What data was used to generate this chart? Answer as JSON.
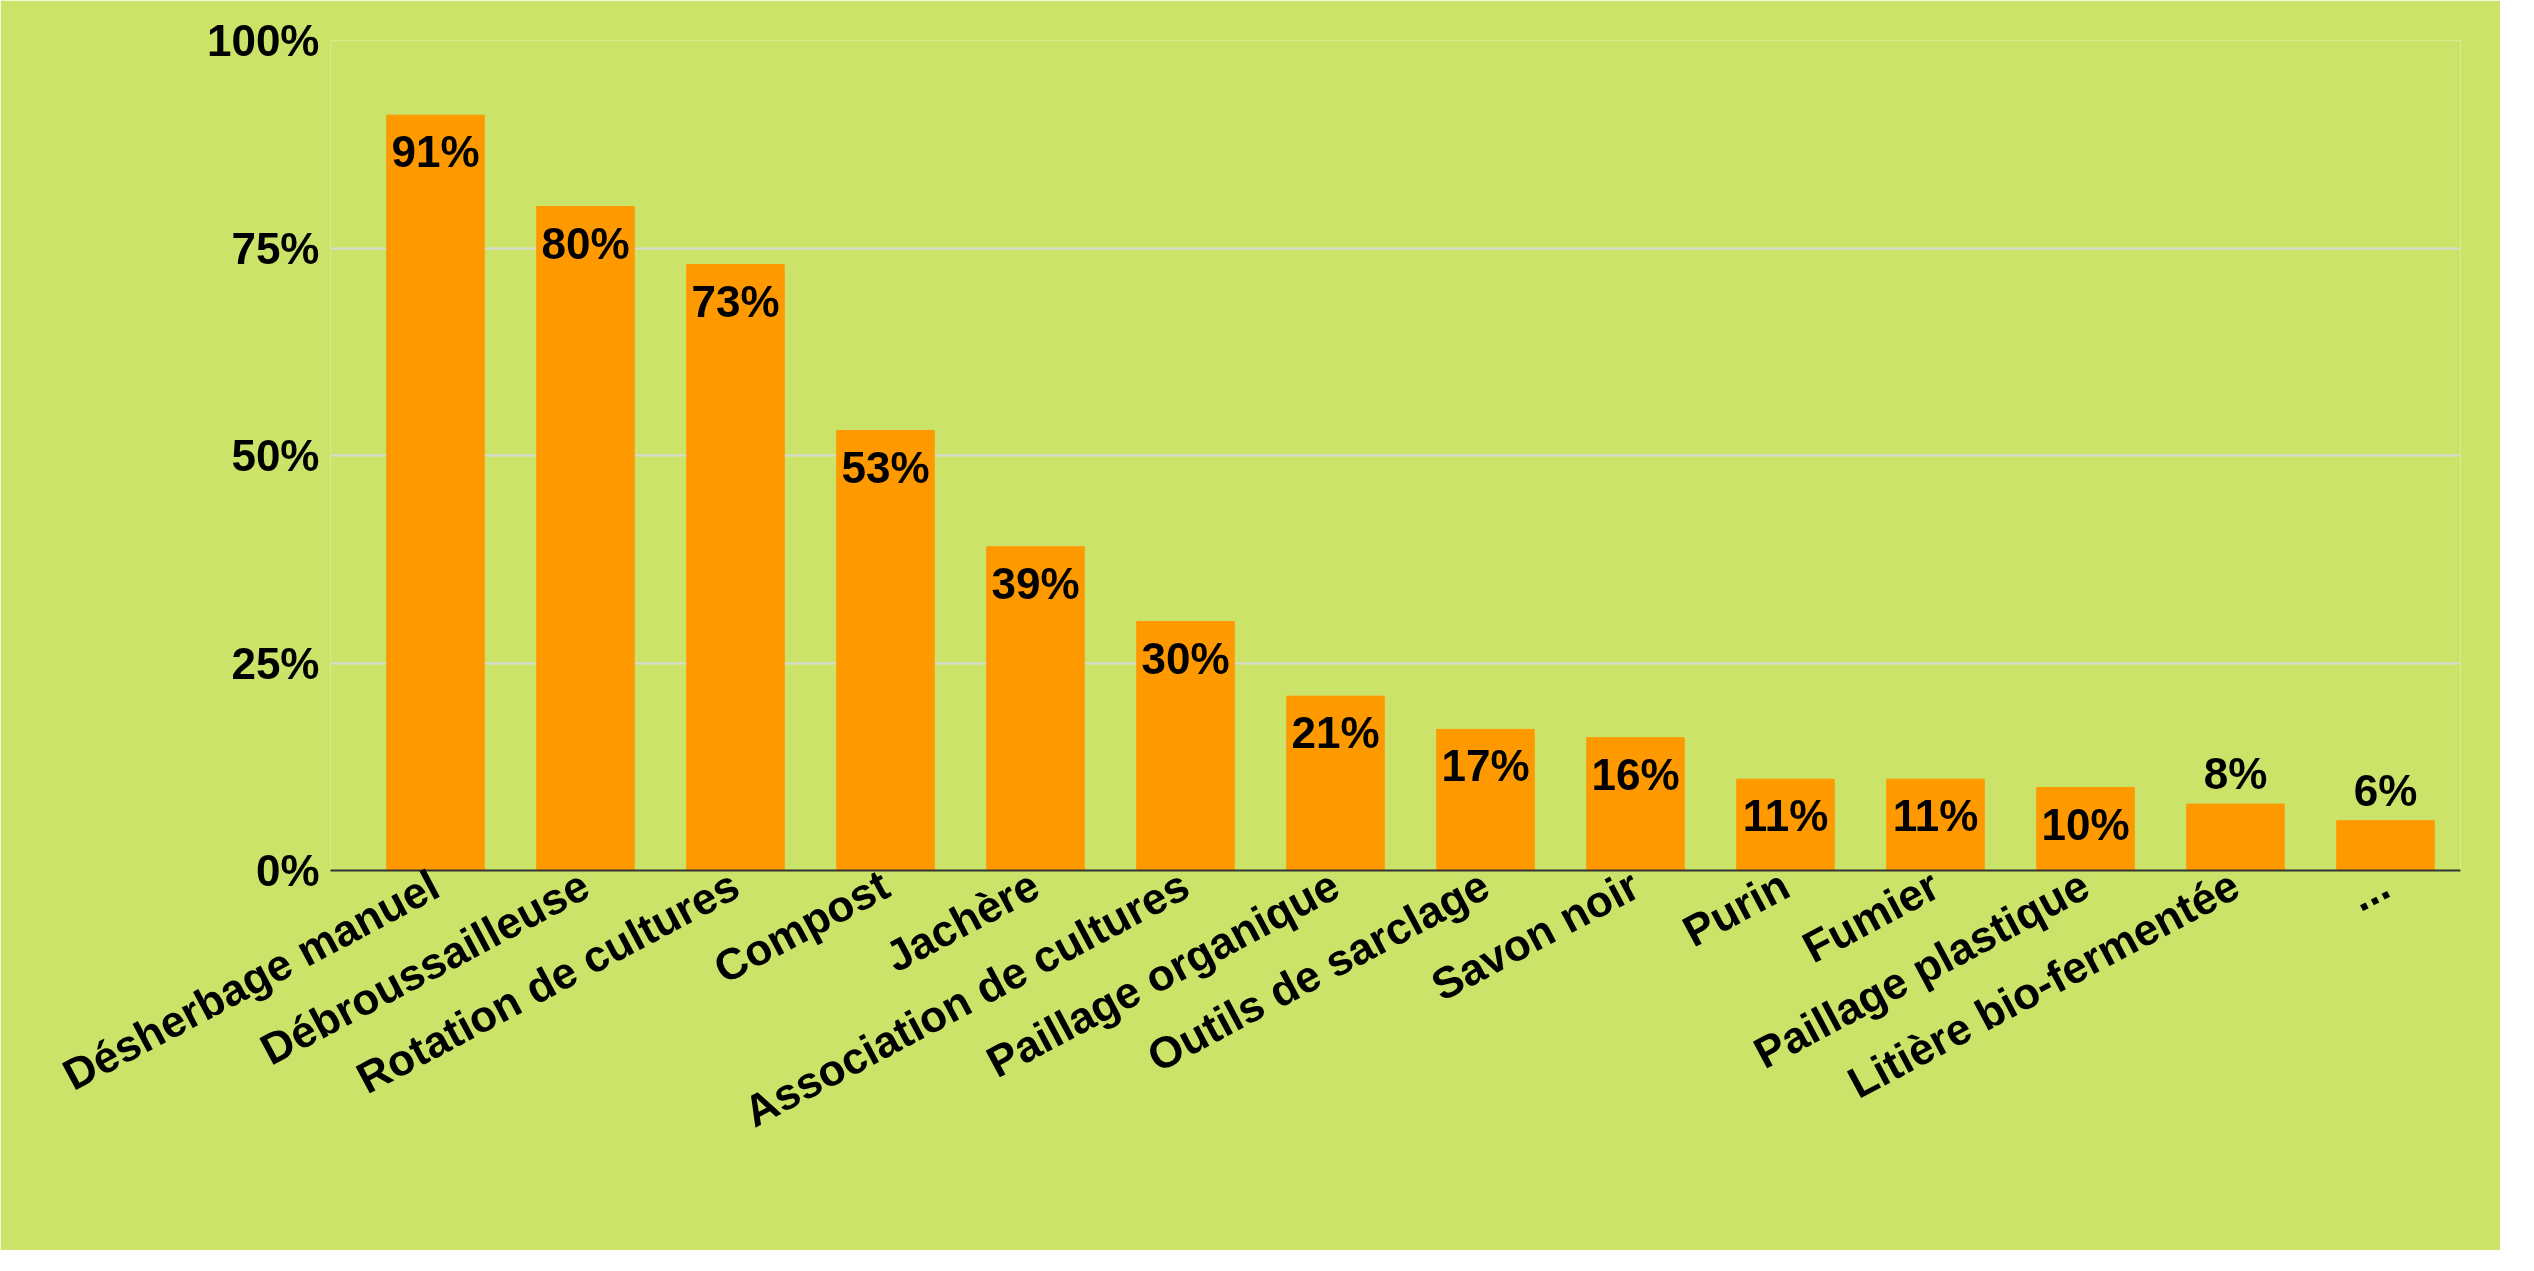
{
  "chart_data": {
    "type": "bar",
    "categories": [
      "Désherbage manuel",
      "Débroussailleuse",
      "Rotation de cultures",
      "Compost",
      "Jachère",
      "Association de cultures",
      "Paillage organique",
      "Outils de sarclage",
      "Savon noir",
      "Purin",
      "Fumier",
      "Paillage plastique",
      "Litière bio-fermentée",
      "..."
    ],
    "values": [
      91,
      80,
      73,
      53,
      39,
      30,
      21,
      17,
      16,
      11,
      11,
      10,
      8,
      6
    ],
    "value_labels": [
      "91%",
      "80%",
      "73%",
      "53%",
      "39%",
      "30%",
      "21%",
      "17%",
      "16%",
      "11%",
      "11%",
      "10%",
      "8%",
      "6%"
    ],
    "color": "#ff9900",
    "ylim": [
      0,
      100
    ],
    "yticks": [
      {
        "value": 0,
        "label": "0%"
      },
      {
        "value": 25,
        "label": "25%"
      },
      {
        "value": 50,
        "label": "50%"
      },
      {
        "value": 75,
        "label": "75%"
      },
      {
        "value": 100,
        "label": "100%"
      }
    ],
    "grid": "y"
  }
}
